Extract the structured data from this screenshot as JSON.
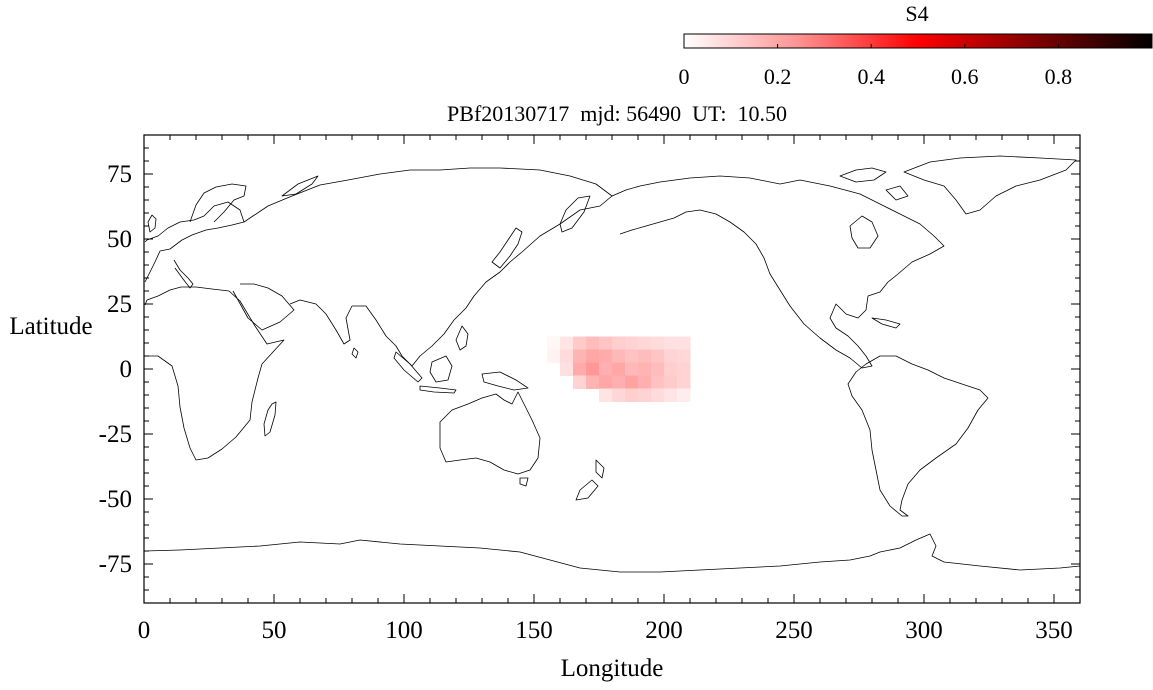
{
  "chart_data": {
    "type": "heatmap",
    "title": "PBf20130717  mjd: 56490  UT:  10.50",
    "xlabel": "Longitude",
    "ylabel": "Latitude",
    "xlim": [
      0,
      360
    ],
    "ylim": [
      -90,
      90
    ],
    "x_ticks": [
      "0",
      "50",
      "100",
      "150",
      "200",
      "250",
      "300",
      "350"
    ],
    "y_ticks": [
      "75",
      "50",
      "25",
      "0",
      "-25",
      "-50",
      "-75"
    ],
    "grid": false,
    "basemap": "coastlines",
    "colorbar": {
      "label": "S4",
      "placement": "top-right",
      "range": [
        0,
        1
      ],
      "ticks": [
        "0",
        "0.2",
        "0.4",
        "0.6",
        "0.8"
      ],
      "colors": [
        "#ffffff",
        "#ff9090",
        "#ff0000",
        "#800000",
        "#000000"
      ]
    },
    "cell_size_deg": [
      5,
      2.5
    ],
    "cells": [
      {
        "lon": 155,
        "lat": 10,
        "s4": 0.02
      },
      {
        "lon": 160,
        "lat": 10,
        "s4": 0.06
      },
      {
        "lon": 165,
        "lat": 10,
        "s4": 0.12
      },
      {
        "lon": 170,
        "lat": 10,
        "s4": 0.15
      },
      {
        "lon": 175,
        "lat": 10,
        "s4": 0.13
      },
      {
        "lon": 180,
        "lat": 10,
        "s4": 0.11
      },
      {
        "lon": 185,
        "lat": 10,
        "s4": 0.1
      },
      {
        "lon": 190,
        "lat": 10,
        "s4": 0.09
      },
      {
        "lon": 195,
        "lat": 10,
        "s4": 0.08
      },
      {
        "lon": 200,
        "lat": 10,
        "s4": 0.07
      },
      {
        "lon": 205,
        "lat": 10,
        "s4": 0.07
      },
      {
        "lon": 155,
        "lat": 5,
        "s4": 0.03
      },
      {
        "lon": 160,
        "lat": 5,
        "s4": 0.08
      },
      {
        "lon": 165,
        "lat": 5,
        "s4": 0.17
      },
      {
        "lon": 170,
        "lat": 5,
        "s4": 0.2
      },
      {
        "lon": 175,
        "lat": 5,
        "s4": 0.19
      },
      {
        "lon": 180,
        "lat": 5,
        "s4": 0.16
      },
      {
        "lon": 185,
        "lat": 5,
        "s4": 0.14
      },
      {
        "lon": 190,
        "lat": 5,
        "s4": 0.15
      },
      {
        "lon": 195,
        "lat": 5,
        "s4": 0.13
      },
      {
        "lon": 200,
        "lat": 5,
        "s4": 0.1
      },
      {
        "lon": 205,
        "lat": 5,
        "s4": 0.09
      },
      {
        "lon": 160,
        "lat": 0,
        "s4": 0.07
      },
      {
        "lon": 165,
        "lat": 0,
        "s4": 0.19
      },
      {
        "lon": 170,
        "lat": 0,
        "s4": 0.23
      },
      {
        "lon": 175,
        "lat": 0,
        "s4": 0.18
      },
      {
        "lon": 180,
        "lat": 0,
        "s4": 0.2
      },
      {
        "lon": 185,
        "lat": 0,
        "s4": 0.16
      },
      {
        "lon": 190,
        "lat": 0,
        "s4": 0.17
      },
      {
        "lon": 195,
        "lat": 0,
        "s4": 0.15
      },
      {
        "lon": 200,
        "lat": 0,
        "s4": 0.11
      },
      {
        "lon": 205,
        "lat": 0,
        "s4": 0.1
      },
      {
        "lon": 165,
        "lat": -5,
        "s4": 0.1
      },
      {
        "lon": 170,
        "lat": -5,
        "s4": 0.17
      },
      {
        "lon": 175,
        "lat": -5,
        "s4": 0.2
      },
      {
        "lon": 180,
        "lat": -5,
        "s4": 0.18
      },
      {
        "lon": 185,
        "lat": -5,
        "s4": 0.21
      },
      {
        "lon": 190,
        "lat": -5,
        "s4": 0.18
      },
      {
        "lon": 195,
        "lat": -5,
        "s4": 0.14
      },
      {
        "lon": 200,
        "lat": -5,
        "s4": 0.12
      },
      {
        "lon": 205,
        "lat": -5,
        "s4": 0.1
      },
      {
        "lon": 175,
        "lat": -10,
        "s4": 0.06
      },
      {
        "lon": 180,
        "lat": -10,
        "s4": 0.09
      },
      {
        "lon": 185,
        "lat": -10,
        "s4": 0.11
      },
      {
        "lon": 190,
        "lat": -10,
        "s4": 0.1
      },
      {
        "lon": 195,
        "lat": -10,
        "s4": 0.08
      },
      {
        "lon": 200,
        "lat": -10,
        "s4": 0.06
      },
      {
        "lon": 205,
        "lat": -10,
        "s4": 0.04
      }
    ]
  }
}
